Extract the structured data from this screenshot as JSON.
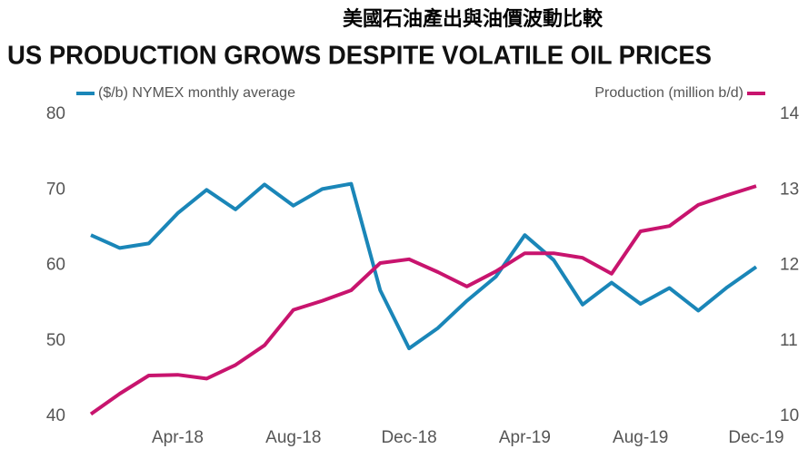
{
  "chart_data": {
    "type": "line",
    "title": "美國石油產出與油價波動比較",
    "subtitle": "US PRODUCTION GROWS DESPITE VOLATILE OIL PRICES",
    "categories": [
      null,
      null,
      null,
      "Apr-18",
      null,
      null,
      null,
      "Aug-18",
      null,
      null,
      null,
      "Dec-18",
      null,
      null,
      null,
      "Apr-19",
      null,
      null,
      null,
      "Aug-19",
      null,
      null,
      null,
      "Dec-19"
    ],
    "series": [
      {
        "name": "($/b) NYMEX monthly average",
        "color": "#1a86b8",
        "axis": "y",
        "values": [
          64,
          62.3,
          62.9,
          66.9,
          70,
          67.4,
          70.7,
          67.9,
          70.1,
          70.8,
          56.7,
          49,
          51.7,
          55.3,
          58.5,
          64,
          60.7,
          54.8,
          57.7,
          54.9,
          57,
          54,
          57.1,
          59.8
        ]
      },
      {
        "name": "Production (million b/d)",
        "color": "#c8146e",
        "axis": "y2",
        "values": [
          10.03,
          10.3,
          10.54,
          10.55,
          10.5,
          10.68,
          10.94,
          11.41,
          11.53,
          11.67,
          12.03,
          12.08,
          11.91,
          11.72,
          11.92,
          12.16,
          12.16,
          12.1,
          11.89,
          12.45,
          12.52,
          12.8,
          12.93,
          13.05
        ]
      }
    ],
    "ylim": [
      40,
      80
    ],
    "yticks": [
      40,
      50,
      60,
      70,
      80
    ],
    "y2lim": [
      10,
      14
    ],
    "y2ticks": [
      10,
      11,
      12,
      13,
      14
    ]
  }
}
